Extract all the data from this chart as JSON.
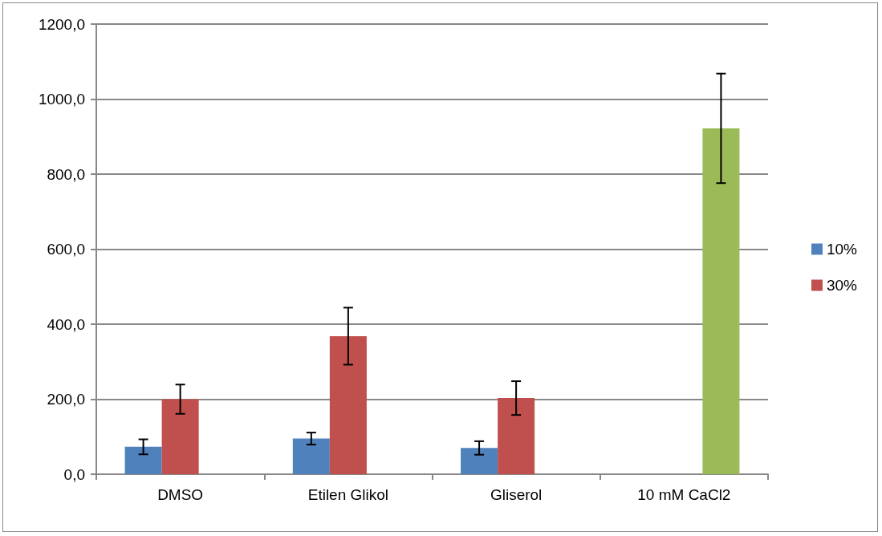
{
  "chart_data": {
    "type": "bar",
    "categories": [
      "DMSO",
      "Etilen Glikol",
      "Gliserol",
      "10 mM CaCl2"
    ],
    "series": [
      {
        "name": "10%",
        "color": "#4f81bd",
        "values": [
          73,
          95,
          70,
          null
        ],
        "errors": [
          20,
          16,
          18,
          null
        ]
      },
      {
        "name": "30%",
        "color": "#c0504d",
        "values": [
          200,
          368,
          203,
          null
        ],
        "errors": [
          39,
          76,
          45,
          null
        ]
      },
      {
        "color": "#9bbb59",
        "values": [
          0,
          0,
          0,
          922
        ],
        "errors": [
          null,
          null,
          null,
          146
        ]
      }
    ],
    "ylim": [
      0,
      1200
    ],
    "yticks": [
      {
        "value": 0,
        "label": "0,0"
      },
      {
        "value": 200,
        "label": "200,0"
      },
      {
        "value": 400,
        "label": "400,0"
      },
      {
        "value": 600,
        "label": "600,0"
      },
      {
        "value": 800,
        "label": "800,0"
      },
      {
        "value": 1000,
        "label": "1000,0"
      },
      {
        "value": 1200,
        "label": "1200,0"
      }
    ],
    "grid": "y",
    "legend": "right"
  }
}
